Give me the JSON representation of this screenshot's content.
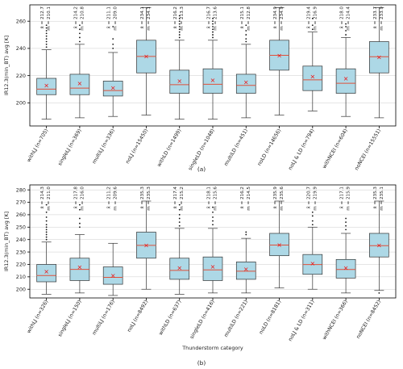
{
  "chart_data": [
    {
      "type": "box",
      "caption": "(a)",
      "ylabel": "IR12.3(min_BT) avg [K]",
      "xlabel": "",
      "ylim": [
        183,
        272
      ],
      "yticks": [
        200,
        220,
        240,
        260
      ],
      "grid": true,
      "categories": [
        "withLJ (n=705)",
        "singleLJ (n=369)",
        "multiLJ (n=336)",
        "noLJ (n=15450)",
        "withLD (n=1499)",
        "singleLD (n=1048)",
        "multiLD (n=451)",
        "noLD (n=14656)",
        "noLJ & LD (n=794)",
        "withNCEI (n=604)",
        "noNCEI (n=15551)"
      ],
      "stats_text": [
        {
          "mean": "x̄ = 212.7",
          "median": "m = 210.1"
        },
        {
          "mean": "x̄ = 214.2",
          "median": "m = 210.8"
        },
        {
          "mean": "x̄ = 211.1",
          "median": "m = 209.0"
        },
        {
          "mean": "x̄ = 234.1",
          "median": "m = 234.1"
        },
        {
          "mean": "x̄ = 216.2",
          "median": "m = 213.3"
        },
        {
          "mean": "x̄ = 216.7",
          "median": "m = 213.6"
        },
        {
          "mean": "x̄ = 215.1",
          "median": "m = 212.8"
        },
        {
          "mean": "x̄ = 234.9",
          "median": "m = 234.9"
        },
        {
          "mean": "x̄ = 219.4",
          "median": "m = 216.9"
        },
        {
          "mean": "x̄ = 218.0",
          "median": "m = 214.4"
        },
        {
          "mean": "x̄ = 233.7",
          "median": "m = 233.9"
        }
      ],
      "boxes": [
        {
          "wlo": 188,
          "q1": 206,
          "med": 210.1,
          "q3": 218,
          "whi": 239,
          "mean": 212.7,
          "out": [
            241,
            243,
            245,
            247,
            249,
            251,
            253,
            255,
            257
          ]
        },
        {
          "wlo": 189,
          "q1": 206,
          "med": 210.8,
          "q3": 221,
          "whi": 243,
          "mean": 214.2,
          "out": [
            245,
            248,
            251,
            254,
            257
          ]
        },
        {
          "wlo": 190,
          "q1": 205,
          "med": 209.0,
          "q3": 216,
          "whi": 237,
          "mean": 211.1,
          "out": [
            240,
            243,
            247,
            256
          ]
        },
        {
          "wlo": 191,
          "q1": 222,
          "med": 234.1,
          "q3": 246,
          "whi": 270,
          "mean": 234.1,
          "out": []
        },
        {
          "wlo": 188,
          "q1": 207,
          "med": 213.3,
          "q3": 224,
          "whi": 246,
          "mean": 216.2,
          "out": [
            248,
            250,
            252,
            254,
            256,
            258,
            260,
            262,
            264
          ]
        },
        {
          "wlo": 188,
          "q1": 207,
          "med": 213.6,
          "q3": 225,
          "whi": 246,
          "mean": 216.7,
          "out": [
            248,
            250,
            252,
            254,
            256,
            258,
            260,
            262
          ]
        },
        {
          "wlo": 189,
          "q1": 207,
          "med": 212.8,
          "q3": 221,
          "whi": 243,
          "mean": 215.1,
          "out": [
            245,
            247,
            250,
            253,
            257
          ]
        },
        {
          "wlo": 191,
          "q1": 224,
          "med": 234.9,
          "q3": 246,
          "whi": 270,
          "mean": 234.9,
          "out": []
        },
        {
          "wlo": 194,
          "q1": 209,
          "med": 216.9,
          "q3": 227,
          "whi": 252,
          "mean": 219.4,
          "out": [
            254,
            257,
            262
          ]
        },
        {
          "wlo": 190,
          "q1": 207,
          "med": 214.4,
          "q3": 225,
          "whi": 248,
          "mean": 218.0,
          "out": [
            250,
            253,
            256,
            258
          ]
        },
        {
          "wlo": 189,
          "q1": 222,
          "med": 233.9,
          "q3": 245,
          "whi": 270,
          "mean": 233.7,
          "out": []
        }
      ]
    },
    {
      "type": "box",
      "caption": "(b)",
      "ylabel": "IR12.3(min_BT) avg [K]",
      "xlabel": "Thunderstorm category",
      "ylim": [
        193,
        284
      ],
      "yticks": [
        200,
        210,
        220,
        230,
        240,
        250,
        260,
        270,
        280
      ],
      "grid": true,
      "categories": [
        "withLJ (n=326)",
        "singleLJ (n=150)",
        "multiLJ (n=176)",
        "noLJ (n=8492)",
        "withLD (n=637)",
        "singleLD (n=416)",
        "multiLD (n=221)",
        "noLD (n=8181)",
        "noLJ & LD (n=311)",
        "withNCEI (n=366)",
        "noNCEI (n=8452)"
      ],
      "stats_text": [
        {
          "mean": "x̄ = 214.3",
          "median": "m = 211.0"
        },
        {
          "mean": "x̄ = 217.8",
          "median": "m = 216.0"
        },
        {
          "mean": "x̄ = 211.2",
          "median": "m = 209.6"
        },
        {
          "mean": "x̄ = 235.3",
          "median": "m = 235.3"
        },
        {
          "mean": "x̄ = 217.4",
          "median": "m = 215.2"
        },
        {
          "mean": "x̄ = 218.1",
          "median": "m = 215.6"
        },
        {
          "mean": "x̄ = 216.2",
          "median": "m = 214.5"
        },
        {
          "mean": "x̄ = 235.9",
          "median": "m = 235.6"
        },
        {
          "mean": "x̄ = 220.7",
          "median": "m = 219.9"
        },
        {
          "mean": "x̄ = 217.1",
          "median": "m = 215.9"
        },
        {
          "mean": "x̄ = 235.3",
          "median": "m = 235.1"
        }
      ],
      "boxes": [
        {
          "wlo": 196,
          "q1": 206,
          "med": 211.0,
          "q3": 220,
          "whi": 238,
          "mean": 214.3,
          "out": [
            240,
            242,
            244,
            246,
            248,
            250,
            252,
            255,
            258,
            262,
            268
          ]
        },
        {
          "wlo": 197,
          "q1": 207,
          "med": 216.0,
          "q3": 225,
          "whi": 244,
          "mean": 217.8,
          "out": [
            250,
            253,
            257,
            264,
            268
          ]
        },
        {
          "wlo": 195,
          "q1": 204,
          "med": 209.6,
          "q3": 218,
          "whi": 237,
          "mean": 211.2,
          "out": []
        },
        {
          "wlo": 200,
          "q1": 225,
          "med": 235.3,
          "q3": 246,
          "whi": 271,
          "mean": 235.3,
          "out": []
        },
        {
          "wlo": 196,
          "q1": 208,
          "med": 215.2,
          "q3": 225,
          "whi": 249,
          "mean": 217.4,
          "out": [
            251,
            254,
            257,
            260,
            264,
            268
          ]
        },
        {
          "wlo": 197,
          "q1": 207,
          "med": 215.6,
          "q3": 226,
          "whi": 249,
          "mean": 218.1,
          "out": [
            252,
            255,
            258,
            262,
            266
          ]
        },
        {
          "wlo": 197,
          "q1": 208,
          "med": 214.5,
          "q3": 222,
          "whi": 241,
          "mean": 216.2,
          "out": [
            244,
            246
          ]
        },
        {
          "wlo": 201,
          "q1": 227,
          "med": 235.6,
          "q3": 245,
          "whi": 271,
          "mean": 235.9,
          "out": []
        },
        {
          "wlo": 200,
          "q1": 212,
          "med": 219.9,
          "q3": 228,
          "whi": 250,
          "mean": 220.7,
          "out": [
            252,
            255,
            259,
            262
          ]
        },
        {
          "wlo": 197,
          "q1": 209,
          "med": 215.9,
          "q3": 224,
          "whi": 245,
          "mean": 217.1,
          "out": [
            248,
            251,
            254,
            257
          ]
        },
        {
          "wlo": 199,
          "q1": 226,
          "med": 235.1,
          "q3": 245,
          "whi": 271,
          "mean": 235.3,
          "out": [
            197
          ]
        }
      ]
    }
  ]
}
